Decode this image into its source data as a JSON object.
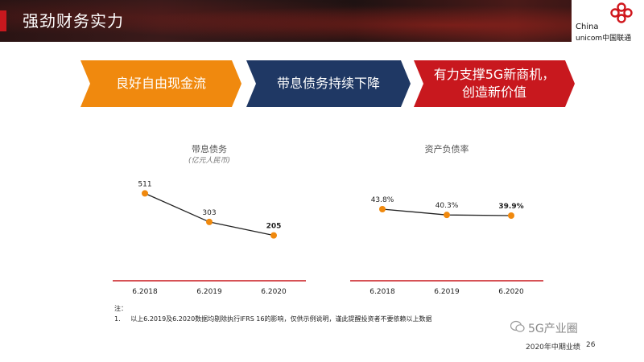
{
  "header": {
    "title": "强劲财务实力"
  },
  "logo": {
    "line1": "China",
    "line2": "unicom中国联通"
  },
  "banners": [
    {
      "label": "良好自由现金流",
      "color": "#f0890e"
    },
    {
      "label": "带息债务持续下降",
      "color": "#1f3864"
    },
    {
      "label": "有力支撑5G新商机，创造新价值",
      "line1": "有力支撑5G新商机，",
      "line2": "创造新价值",
      "color": "#c8181e"
    }
  ],
  "chart_data": [
    {
      "type": "line",
      "title": "带息债务",
      "subtitle": "(亿元人民币)",
      "categories": [
        "6.2018",
        "6.2019",
        "6.2020"
      ],
      "values": [
        511,
        303,
        205
      ],
      "labels": [
        "511",
        "303",
        "205"
      ],
      "bold_last_label": true,
      "ylim": [
        150,
        560
      ],
      "marker_color": "#f0890e",
      "line_color": "#222222",
      "axis_color": "#c8181e"
    },
    {
      "type": "line",
      "title": "资产负债率",
      "categories": [
        "6.2018",
        "6.2019",
        "6.2020"
      ],
      "values": [
        43.8,
        40.3,
        39.9
      ],
      "labels": [
        "43.8%",
        "40.3%",
        "39.9%"
      ],
      "bold_last_label": true,
      "ylim": [
        0,
        200
      ],
      "marker_color": "#f0890e",
      "line_color": "#222222",
      "axis_color": "#c8181e"
    }
  ],
  "notes": {
    "heading": "注：",
    "items": [
      {
        "num": "1.",
        "text": "以上6.2019及6.2020数据均剔除执行IFRS 16的影响，仅供示例说明，谨此提醒投资者不要依赖以上数据"
      }
    ]
  },
  "footer": {
    "report": "2020年中期业绩",
    "page": "26"
  },
  "watermark": {
    "text": "5G产业圈"
  }
}
